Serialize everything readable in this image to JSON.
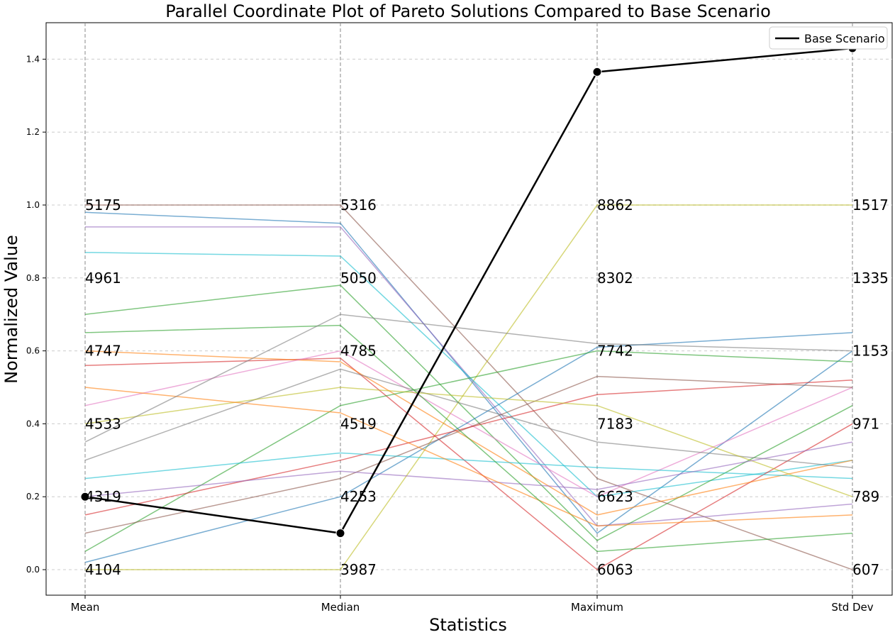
{
  "chart_data": {
    "type": "parallel_coordinates",
    "title": "Parallel Coordinate Plot of Pareto Solutions Compared to Base Scenario",
    "xlabel": "Statistics",
    "ylabel": "Normalized Value",
    "ylim": [
      -0.07,
      1.5
    ],
    "yticks": [
      "0.0",
      "0.2",
      "0.4",
      "0.6",
      "0.8",
      "1.0",
      "1.2",
      "1.4"
    ],
    "axes": [
      "Mean",
      "Median",
      "Maximum",
      "Std Dev"
    ],
    "axis_value_labels": [
      [
        "4104",
        "4319",
        "4533",
        "4747",
        "4961",
        "5175"
      ],
      [
        "3987",
        "4253",
        "4519",
        "4785",
        "5050",
        "5316"
      ],
      [
        "6063",
        "6623",
        "7183",
        "7742",
        "8302",
        "8862"
      ],
      [
        "607",
        "789",
        "971",
        "1153",
        "1335",
        "1517"
      ]
    ],
    "grid": true,
    "legend_position": "upper right",
    "legend": [
      "Base Scenario"
    ],
    "base_scenario": {
      "name": "Base Scenario",
      "color": "#000000",
      "values": [
        0.2,
        0.1,
        1.365,
        1.43
      ]
    },
    "pareto_solutions": [
      {
        "color": "#8c564b",
        "values": [
          1.0,
          1.0,
          0.25,
          0.0
        ]
      },
      {
        "color": "#bcbd22",
        "values": [
          0.0,
          0.0,
          1.0,
          1.0
        ]
      },
      {
        "color": "#1f77b4",
        "values": [
          0.98,
          0.95,
          0.1,
          0.6
        ]
      },
      {
        "color": "#9467bd",
        "values": [
          0.94,
          0.94,
          0.12,
          0.18
        ]
      },
      {
        "color": "#17becf",
        "values": [
          0.87,
          0.86,
          0.2,
          0.3
        ]
      },
      {
        "color": "#2ca02c",
        "values": [
          0.7,
          0.78,
          0.08,
          0.45
        ]
      },
      {
        "color": "#d62728",
        "values": [
          0.56,
          0.58,
          0.0,
          0.4
        ]
      },
      {
        "color": "#ff7f0e",
        "values": [
          0.6,
          0.57,
          0.15,
          0.3
        ]
      },
      {
        "color": "#e377c2",
        "values": [
          0.45,
          0.6,
          0.2,
          0.5
        ]
      },
      {
        "color": "#7f7f7f",
        "values": [
          0.3,
          0.55,
          0.35,
          0.28
        ]
      },
      {
        "color": "#1f77b4",
        "values": [
          0.02,
          0.2,
          0.61,
          0.65
        ]
      },
      {
        "color": "#2ca02c",
        "values": [
          0.05,
          0.45,
          0.6,
          0.57
        ]
      },
      {
        "color": "#8c564b",
        "values": [
          0.1,
          0.25,
          0.53,
          0.5
        ]
      },
      {
        "color": "#d62728",
        "values": [
          0.15,
          0.3,
          0.48,
          0.52
        ]
      },
      {
        "color": "#17becf",
        "values": [
          0.25,
          0.32,
          0.28,
          0.25
        ]
      },
      {
        "color": "#bcbd22",
        "values": [
          0.4,
          0.5,
          0.45,
          0.2
        ]
      },
      {
        "color": "#9467bd",
        "values": [
          0.2,
          0.27,
          0.22,
          0.35
        ]
      },
      {
        "color": "#ff7f0e",
        "values": [
          0.5,
          0.43,
          0.12,
          0.15
        ]
      },
      {
        "color": "#2ca02c",
        "values": [
          0.65,
          0.67,
          0.05,
          0.1
        ]
      },
      {
        "color": "#7f7f7f",
        "values": [
          0.35,
          0.7,
          0.62,
          0.6
        ]
      }
    ]
  }
}
